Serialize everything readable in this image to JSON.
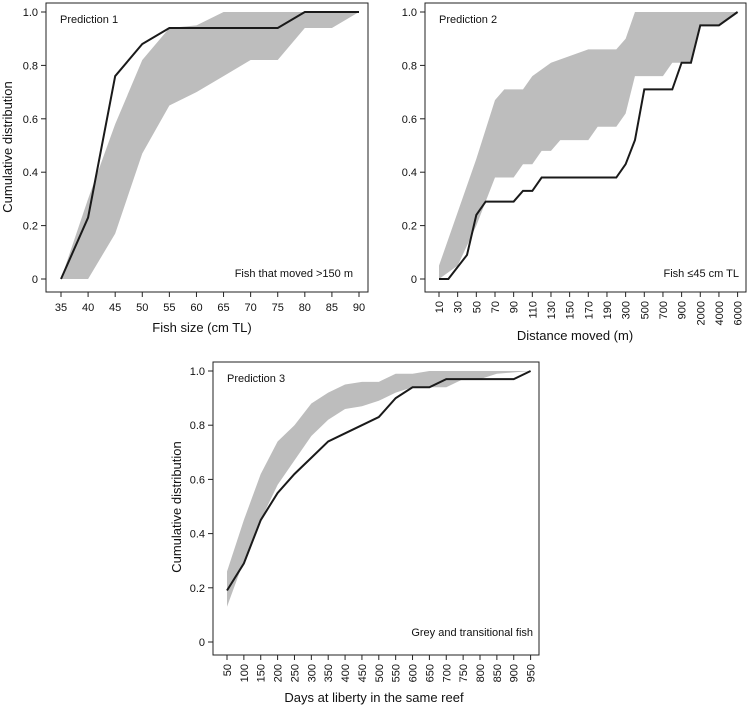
{
  "colors": {
    "envelope": "#bdbdbd",
    "observed": "#1a1a1a",
    "frame": "#222222"
  },
  "chart_data": [
    {
      "type": "area",
      "title": "Prediction 1",
      "annotation": "Fish that moved >150 m",
      "xlabel": "Fish size (cm TL)",
      "ylabel": "Cumulative distribution",
      "x_ticks": [
        "35",
        "40",
        "45",
        "50",
        "55",
        "60",
        "65",
        "70",
        "75",
        "80",
        "85",
        "90"
      ],
      "xlim": [
        35,
        90
      ],
      "ylim": [
        0,
        1
      ],
      "y_ticks": [
        "0",
        "0.2",
        "0.4",
        "0.6",
        "0.8",
        "1.0"
      ],
      "series": [
        {
          "role": "envelope",
          "upper": [
            [
              35,
              0
            ],
            [
              40,
              0.3
            ],
            [
              45,
              0.58
            ],
            [
              50,
              0.82
            ],
            [
              55,
              0.94
            ],
            [
              60,
              0.95
            ],
            [
              65,
              1.0
            ],
            [
              90,
              1.0
            ]
          ],
          "lower": [
            [
              35,
              0
            ],
            [
              40,
              0
            ],
            [
              45,
              0.17
            ],
            [
              50,
              0.47
            ],
            [
              55,
              0.65
            ],
            [
              60,
              0.7
            ],
            [
              65,
              0.76
            ],
            [
              70,
              0.82
            ],
            [
              75,
              0.82
            ],
            [
              80,
              0.94
            ],
            [
              85,
              0.94
            ],
            [
              90,
              1.0
            ]
          ]
        },
        {
          "role": "observed",
          "points": [
            [
              35,
              0
            ],
            [
              40,
              0.23
            ],
            [
              45,
              0.76
            ],
            [
              50,
              0.88
            ],
            [
              55,
              0.94
            ],
            [
              60,
              0.94
            ],
            [
              65,
              0.94
            ],
            [
              70,
              0.94
            ],
            [
              75,
              0.94
            ],
            [
              80,
              1.0
            ],
            [
              85,
              1.0
            ],
            [
              90,
              1.0
            ]
          ]
        }
      ]
    },
    {
      "type": "area",
      "title": "Prediction 2",
      "annotation": "Fish ≤45 cm TL",
      "xlabel": "Distance moved (m)",
      "ylabel": "",
      "x_ticks": [
        "10",
        "30",
        "50",
        "70",
        "90",
        "110",
        "130",
        "150",
        "170",
        "190",
        "300",
        "500",
        "700",
        "900",
        "2000",
        "4000",
        "6000"
      ],
      "ylim": [
        0,
        1
      ],
      "y_ticks": [
        "0",
        "0.2",
        "0.4",
        "0.6",
        "0.8",
        "1.0"
      ],
      "series": [
        {
          "role": "envelope",
          "upper": [
            [
              0,
              0.05
            ],
            [
              1,
              0.25
            ],
            [
              2,
              0.45
            ],
            [
              3,
              0.67
            ],
            [
              3.5,
              0.71
            ],
            [
              4.5,
              0.71
            ],
            [
              5,
              0.76
            ],
            [
              6,
              0.81
            ],
            [
              8,
              0.86
            ],
            [
              9.5,
              0.86
            ],
            [
              10,
              0.9
            ],
            [
              10.5,
              1.0
            ],
            [
              16,
              1.0
            ]
          ],
          "lower": [
            [
              0,
              0
            ],
            [
              1,
              0.05
            ],
            [
              2,
              0.2
            ],
            [
              3,
              0.38
            ],
            [
              4,
              0.38
            ],
            [
              4.5,
              0.43
            ],
            [
              5,
              0.43
            ],
            [
              5.5,
              0.48
            ],
            [
              6,
              0.48
            ],
            [
              6.5,
              0.52
            ],
            [
              8,
              0.52
            ],
            [
              8.5,
              0.57
            ],
            [
              9.5,
              0.57
            ],
            [
              10,
              0.62
            ],
            [
              10.5,
              0.76
            ],
            [
              12,
              0.76
            ],
            [
              12.5,
              0.81
            ],
            [
              13.5,
              0.81
            ],
            [
              14,
              0.95
            ],
            [
              15,
              0.95
            ],
            [
              16,
              1.0
            ]
          ]
        },
        {
          "role": "observed",
          "points": [
            [
              0,
              0
            ],
            [
              0.5,
              0
            ],
            [
              1.5,
              0.09
            ],
            [
              2,
              0.24
            ],
            [
              2.5,
              0.29
            ],
            [
              3,
              0.29
            ],
            [
              4,
              0.29
            ],
            [
              4.5,
              0.33
            ],
            [
              5,
              0.33
            ],
            [
              5.5,
              0.38
            ],
            [
              9.5,
              0.38
            ],
            [
              10,
              0.43
            ],
            [
              10.5,
              0.52
            ],
            [
              11,
              0.71
            ],
            [
              12.5,
              0.71
            ],
            [
              13,
              0.81
            ],
            [
              13.5,
              0.81
            ],
            [
              14,
              0.95
            ],
            [
              15,
              0.95
            ],
            [
              16,
              1.0
            ]
          ]
        }
      ]
    },
    {
      "type": "area",
      "title": "Prediction 3",
      "annotation": "Grey and transitional fish",
      "xlabel": "Days at liberty in the same reef",
      "ylabel": "Cumulative distribution",
      "x_ticks": [
        "50",
        "100",
        "150",
        "200",
        "250",
        "300",
        "350",
        "400",
        "450",
        "500",
        "550",
        "600",
        "650",
        "700",
        "750",
        "800",
        "850",
        "900",
        "950"
      ],
      "xlim": [
        50,
        950
      ],
      "ylim": [
        0,
        1
      ],
      "y_ticks": [
        "0",
        "0.2",
        "0.4",
        "0.6",
        "0.8",
        "1.0"
      ],
      "series": [
        {
          "role": "envelope",
          "upper": [
            [
              50,
              0.26
            ],
            [
              100,
              0.45
            ],
            [
              150,
              0.62
            ],
            [
              200,
              0.74
            ],
            [
              250,
              0.8
            ],
            [
              300,
              0.88
            ],
            [
              350,
              0.92
            ],
            [
              400,
              0.95
            ],
            [
              450,
              0.96
            ],
            [
              500,
              0.96
            ],
            [
              550,
              0.99
            ],
            [
              600,
              0.99
            ],
            [
              650,
              1.0
            ],
            [
              950,
              1.0
            ]
          ],
          "lower": [
            [
              50,
              0.13
            ],
            [
              100,
              0.3
            ],
            [
              150,
              0.45
            ],
            [
              200,
              0.58
            ],
            [
              250,
              0.67
            ],
            [
              300,
              0.76
            ],
            [
              350,
              0.82
            ],
            [
              400,
              0.86
            ],
            [
              450,
              0.87
            ],
            [
              500,
              0.89
            ],
            [
              550,
              0.92
            ],
            [
              600,
              0.94
            ],
            [
              650,
              0.94
            ],
            [
              700,
              0.94
            ],
            [
              750,
              0.97
            ],
            [
              800,
              0.97
            ],
            [
              850,
              0.99
            ],
            [
              950,
              1.0
            ]
          ]
        },
        {
          "role": "observed",
          "points": [
            [
              50,
              0.19
            ],
            [
              100,
              0.29
            ],
            [
              150,
              0.45
            ],
            [
              200,
              0.55
            ],
            [
              250,
              0.62
            ],
            [
              300,
              0.68
            ],
            [
              350,
              0.74
            ],
            [
              400,
              0.77
            ],
            [
              450,
              0.8
            ],
            [
              500,
              0.83
            ],
            [
              550,
              0.9
            ],
            [
              600,
              0.94
            ],
            [
              650,
              0.94
            ],
            [
              700,
              0.97
            ],
            [
              750,
              0.97
            ],
            [
              800,
              0.97
            ],
            [
              850,
              0.97
            ],
            [
              900,
              0.97
            ],
            [
              950,
              1.0
            ]
          ]
        }
      ]
    }
  ]
}
